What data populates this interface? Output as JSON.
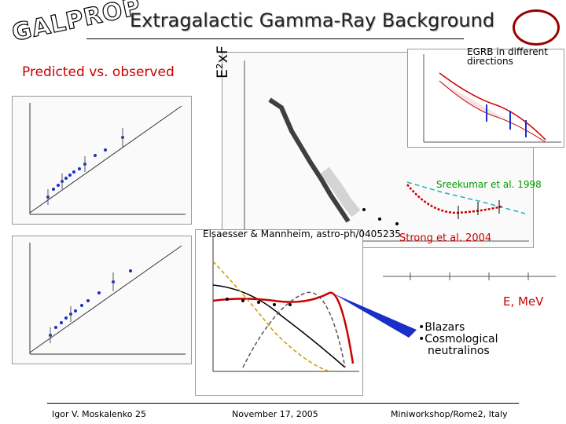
{
  "logo_text": "GALPROP",
  "title": "Extragalactic Gamma-Ray Background",
  "left_heading": "Predicted vs. observed",
  "y_axis_label": "E²xF",
  "egrb_note": "EGRB in different directions",
  "sreekumar_label": "Sreekumar et al. 1998",
  "strong_label": "Strong et al. 2004",
  "elsaesser_label": "Elsaesser & Mannheim, astro-ph/0405235",
  "energy_unit_label": "E, MeV",
  "bullets": [
    "•Blazars",
    "•Cosmological",
    "neutralinos"
  ],
  "footer": {
    "author": "Igor V. Moskalenko 25",
    "date": "November 17, 2005",
    "event": "Miniworkshop/Rome2, Italy"
  },
  "colors": {
    "accent_red": "#cc0000",
    "sreekumar_green": "#009900",
    "arrow_blue": "#1a2fc8"
  }
}
